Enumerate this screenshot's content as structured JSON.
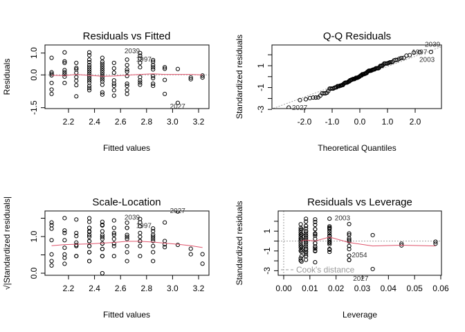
{
  "chart_data": [
    {
      "type": "scatter",
      "title": "Residuals vs Fitted",
      "xlabel": "Fitted values",
      "ylabel": "Residuals",
      "xticks": [
        2.2,
        2.4,
        2.6,
        2.8,
        3.0,
        3.2
      ],
      "yticks": [
        -1.5,
        0.0,
        1.0
      ],
      "ytick_labels": [
        "-1.5",
        "0.0",
        "1.0"
      ],
      "reference_line": 0,
      "groups": [
        {
          "fitted": 2.07,
          "residuals": [
            0.78,
            0.12,
            0.05,
            -0.02,
            -0.37,
            -0.67,
            -0.87
          ],
          "leverage": 0.025
        },
        {
          "fitted": 2.17,
          "residuals": [
            1.03,
            0.62,
            0.55,
            0.22,
            0.12,
            0.03,
            -0.08,
            -0.37
          ],
          "leverage": 0.0175
        },
        {
          "fitted": 2.26,
          "residuals": [
            0.55,
            0.32,
            0.25,
            0.1,
            -0.1,
            -0.27,
            -0.47,
            -0.98
          ],
          "leverage": 0.012
        },
        {
          "fitted": 2.36,
          "residuals": [
            1.03,
            0.9,
            0.7,
            0.58,
            0.45,
            0.35,
            0.25,
            0.15,
            0.05,
            -0.05,
            -0.15,
            -0.25,
            -0.35,
            -0.5,
            -0.6,
            -0.7
          ],
          "leverage": 0.0085
        },
        {
          "fitted": 2.46,
          "residuals": [
            0.78,
            0.6,
            0.5,
            0.4,
            0.3,
            0.2,
            0.1,
            0.0,
            -0.1,
            -0.2,
            -0.3,
            -0.45,
            -0.8,
            -0.9
          ],
          "leverage": 0.0065
        },
        {
          "fitted": 2.55,
          "residuals": [
            0.55,
            0.3,
            0.1,
            -0.25,
            -0.4,
            -0.5,
            -0.7,
            -0.95
          ],
          "leverage": 0.0068
        },
        {
          "fitted": 2.65,
          "residuals": [
            0.7,
            0.45,
            0.25,
            0.15,
            -0.05,
            -0.4,
            -0.5,
            -0.7,
            -0.87
          ],
          "leverage": 0.0085
        },
        {
          "fitted": 2.75,
          "residuals": [
            1.0,
            0.88,
            0.75,
            0.55,
            0.35,
            -0.1,
            -0.25,
            -0.35,
            -0.45
          ],
          "leverage": 0.012
        },
        {
          "fitted": 2.85,
          "residuals": [
            0.68,
            0.6,
            0.45,
            0.35,
            0.25,
            -0.05,
            -0.15,
            -0.4,
            -0.5
          ],
          "leverage": 0.0175
        },
        {
          "fitted": 2.94,
          "residuals": [
            0.35,
            0.28,
            -0.23,
            -0.87
          ],
          "leverage": 0.025
        },
        {
          "fitted": 3.04,
          "residuals": [
            0.27,
            -1.28
          ],
          "leverage": 0.034
        },
        {
          "fitted": 3.14,
          "residuals": [
            -0.12,
            -0.2
          ],
          "leverage": 0.045
        },
        {
          "fitted": 3.23,
          "residuals": [
            -0.03,
            -0.12
          ],
          "leverage": 0.058
        }
      ],
      "residual_sd": 0.46,
      "smoother": [
        [
          2.07,
          -0.02
        ],
        [
          2.17,
          -0.03
        ],
        [
          2.26,
          0.02
        ],
        [
          2.36,
          -0.02
        ],
        [
          2.46,
          -0.06
        ],
        [
          2.55,
          -0.05
        ],
        [
          2.65,
          -0.01
        ],
        [
          2.75,
          0.02
        ],
        [
          2.85,
          0.05
        ],
        [
          2.94,
          0.02
        ],
        [
          3.04,
          0.02
        ],
        [
          3.14,
          0.02
        ],
        [
          3.23,
          0.0
        ]
      ],
      "annotations": [
        {
          "text": "2039",
          "x": 2.63,
          "y": 1.08
        },
        {
          "text": "1997",
          "x": 2.72,
          "y": 1.05
        },
        {
          "text": "2027",
          "x": 2.98,
          "y": -1.45
        }
      ]
    },
    {
      "type": "scatter",
      "title": "Q-Q Residuals",
      "xlabel": "Theoretical Quantiles",
      "ylabel": "Standardized residuals",
      "xticks": [
        -2,
        -1,
        0,
        1,
        2
      ],
      "yticks": [
        -3,
        -2,
        -1,
        0,
        1,
        2
      ],
      "ytick_labels": [
        "-3",
        "",
        "-1",
        "",
        "1",
        ""
      ],
      "reference_line": {
        "intercept": 0.0,
        "slope": 0.93
      },
      "annotations": [
        {
          "text": "2027",
          "x": -2.45,
          "y": -2.85
        },
        {
          "text": "1997",
          "x": 1.88,
          "y": 2.25
        },
        {
          "text": "2003",
          "x": 2.15,
          "y": 2.25
        },
        {
          "text": "2039",
          "x": 2.35,
          "y": 2.25
        }
      ]
    },
    {
      "type": "scatter",
      "title": "Scale-Location",
      "xlabel": "Fitted values",
      "ylabel": "√|Standardized residuals|",
      "xticks": [
        2.2,
        2.4,
        2.6,
        2.8,
        3.0,
        3.2
      ],
      "yticks": [
        0.0,
        0.5,
        1.0,
        1.5
      ],
      "ytick_labels": [
        "0.0",
        "",
        "1.0",
        ""
      ],
      "smoother": [
        [
          2.07,
          0.75
        ],
        [
          2.17,
          0.78
        ],
        [
          2.26,
          0.79
        ],
        [
          2.36,
          0.8
        ],
        [
          2.46,
          0.82
        ],
        [
          2.55,
          0.84
        ],
        [
          2.65,
          0.87
        ],
        [
          2.75,
          0.87
        ],
        [
          2.85,
          0.85
        ],
        [
          2.94,
          0.82
        ],
        [
          3.04,
          0.79
        ],
        [
          3.14,
          0.75
        ],
        [
          3.23,
          0.7
        ]
      ],
      "annotations": [
        {
          "text": "2039",
          "x": 2.63,
          "y": 1.52
        },
        {
          "text": "1997",
          "x": 2.72,
          "y": 1.5
        },
        {
          "text": "2027",
          "x": 2.98,
          "y": 1.7
        }
      ]
    },
    {
      "type": "scatter",
      "title": "Residuals vs Leverage",
      "xlabel": "Leverage",
      "ylabel": "Standardized residuals",
      "xticks": [
        0.0,
        0.01,
        0.02,
        0.03,
        0.04,
        0.05,
        0.06
      ],
      "xtick_labels": [
        "0.00",
        "0.01",
        "0.02",
        "0.03",
        "0.04",
        "0.05",
        "0.06"
      ],
      "yticks": [
        -3,
        -2,
        -1,
        0,
        1,
        2
      ],
      "ytick_labels": [
        "-3",
        "",
        "-1",
        "",
        "1",
        ""
      ],
      "smoother": [
        [
          0.0065,
          0.0
        ],
        [
          0.0085,
          0.1
        ],
        [
          0.012,
          0.0
        ],
        [
          0.0175,
          0.4
        ],
        [
          0.025,
          -0.15
        ],
        [
          0.034,
          -0.5
        ],
        [
          0.045,
          -0.42
        ],
        [
          0.058,
          -0.5
        ]
      ],
      "legend": "Cook's distance",
      "legend_position": "bottom-left",
      "annotations": [
        {
          "text": "2003",
          "x": 0.0195,
          "y": 2.3
        },
        {
          "text": "2054",
          "x": 0.026,
          "y": -2.2
        },
        {
          "text": "2027",
          "x": 0.0265,
          "y": -3.05
        }
      ]
    }
  ],
  "colors": {
    "smoother": "#df536b",
    "reference": "#9e9e9e",
    "points": "#000000"
  }
}
